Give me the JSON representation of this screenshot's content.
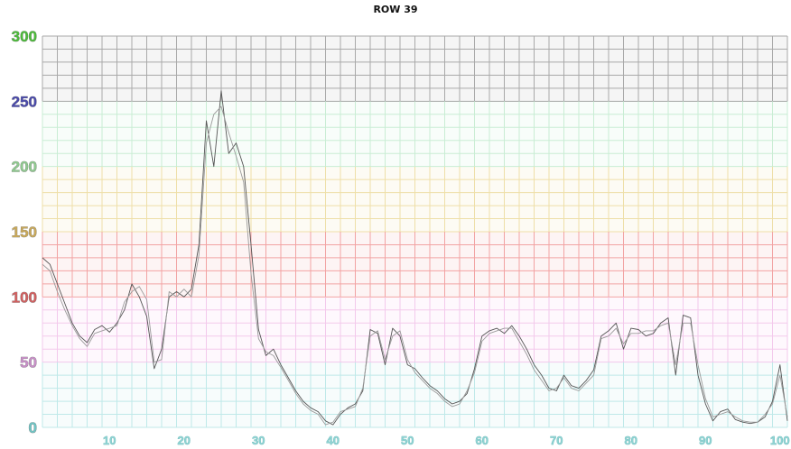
{
  "chart_data": {
    "type": "line",
    "title": "ROW 39",
    "xlabel": "",
    "ylabel": "",
    "xlim": [
      1,
      101
    ],
    "ylim": [
      0,
      300
    ],
    "grid": true,
    "x_ticks": [
      "10",
      "20",
      "30",
      "40",
      "50",
      "60",
      "70",
      "80",
      "90",
      "100"
    ],
    "y_ticks": [
      "0",
      "50",
      "100",
      "150",
      "200",
      "250",
      "300"
    ],
    "y_tick_colors": [
      "#6fc4c4",
      "#c78fc7",
      "#d06060",
      "#c8a85a",
      "#8fc98f",
      "#4a4aaa",
      "#4cbb3a"
    ],
    "band_colors": [
      {
        "from": 0,
        "to": 50,
        "color": "#bfe9e9"
      },
      {
        "from": 50,
        "to": 100,
        "color": "#f3c9ec"
      },
      {
        "from": 100,
        "to": 150,
        "color": "#f2a3a3"
      },
      {
        "from": 150,
        "to": 200,
        "color": "#eedfa8"
      },
      {
        "from": 200,
        "to": 250,
        "color": "#c9edd4"
      },
      {
        "from": 250,
        "to": 300,
        "color": "#a9a9a9"
      }
    ],
    "series": [
      {
        "color": "#555555",
        "x": [
          1,
          2,
          3,
          4,
          5,
          6,
          7,
          8,
          9,
          10,
          11,
          12,
          13,
          14,
          15,
          16,
          17,
          18,
          19,
          20,
          21,
          22,
          23,
          24,
          25,
          26,
          27,
          28,
          29,
          30,
          31,
          32,
          33,
          34,
          35,
          36,
          37,
          38,
          39,
          40,
          41,
          42,
          43,
          44,
          45,
          46,
          47,
          48,
          49,
          50,
          51,
          52,
          53,
          54,
          55,
          56,
          57,
          58,
          59,
          60,
          61,
          62,
          63,
          64,
          65,
          66,
          67,
          68,
          69,
          70,
          71,
          72,
          73,
          74,
          75,
          76,
          77,
          78,
          79,
          80,
          81,
          82,
          83,
          84,
          85,
          86,
          87,
          88,
          89,
          90,
          91,
          92,
          93,
          94,
          95,
          96,
          97,
          98,
          99,
          100,
          101
        ],
        "values": [
          130,
          125,
          110,
          95,
          80,
          70,
          65,
          75,
          78,
          73,
          80,
          90,
          110,
          100,
          85,
          45,
          60,
          100,
          104,
          100,
          106,
          140,
          235,
          200,
          258,
          210,
          218,
          200,
          140,
          75,
          55,
          60,
          48,
          38,
          28,
          20,
          15,
          12,
          5,
          2,
          10,
          15,
          18,
          28,
          75,
          72,
          48,
          76,
          70,
          48,
          45,
          38,
          32,
          28,
          22,
          18,
          20,
          26,
          45,
          70,
          74,
          76,
          72,
          78,
          70,
          60,
          48,
          40,
          30,
          28,
          40,
          32,
          30,
          36,
          44,
          70,
          74,
          80,
          60,
          76,
          75,
          70,
          72,
          80,
          84,
          40,
          86,
          84,
          40,
          18,
          5,
          12,
          14,
          6,
          4,
          3,
          4,
          8,
          20,
          48,
          5
        ]
      },
      {
        "color": "#9a9a9a",
        "x": [
          1,
          2,
          3,
          4,
          5,
          6,
          7,
          8,
          9,
          10,
          11,
          12,
          13,
          14,
          15,
          16,
          17,
          18,
          19,
          20,
          21,
          22,
          23,
          24,
          25,
          26,
          27,
          28,
          29,
          30,
          31,
          32,
          33,
          34,
          35,
          36,
          37,
          38,
          39,
          40,
          41,
          42,
          43,
          44,
          45,
          46,
          47,
          48,
          49,
          50,
          51,
          52,
          53,
          54,
          55,
          56,
          57,
          58,
          59,
          60,
          61,
          62,
          63,
          64,
          65,
          66,
          67,
          68,
          69,
          70,
          71,
          72,
          73,
          74,
          75,
          76,
          77,
          78,
          79,
          80,
          81,
          82,
          83,
          84,
          85,
          86,
          87,
          88,
          89,
          90,
          91,
          92,
          93,
          94,
          95,
          96,
          97,
          98,
          99,
          100,
          101
        ],
        "values": [
          125,
          120,
          104,
          90,
          78,
          68,
          62,
          72,
          74,
          76,
          78,
          96,
          104,
          108,
          98,
          50,
          52,
          104,
          100,
          106,
          100,
          132,
          218,
          240,
          246,
          226,
          208,
          188,
          118,
          68,
          58,
          55,
          46,
          36,
          26,
          18,
          13,
          10,
          2,
          4,
          12,
          14,
          16,
          30,
          70,
          74,
          52,
          70,
          74,
          52,
          42,
          36,
          30,
          26,
          20,
          16,
          18,
          28,
          42,
          66,
          72,
          74,
          76,
          76,
          66,
          56,
          44,
          36,
          28,
          30,
          38,
          30,
          28,
          34,
          40,
          68,
          70,
          76,
          64,
          72,
          72,
          74,
          74,
          78,
          80,
          48,
          80,
          80,
          48,
          22,
          8,
          10,
          12,
          8,
          5,
          4,
          4,
          10,
          18,
          40,
          8
        ]
      }
    ]
  }
}
